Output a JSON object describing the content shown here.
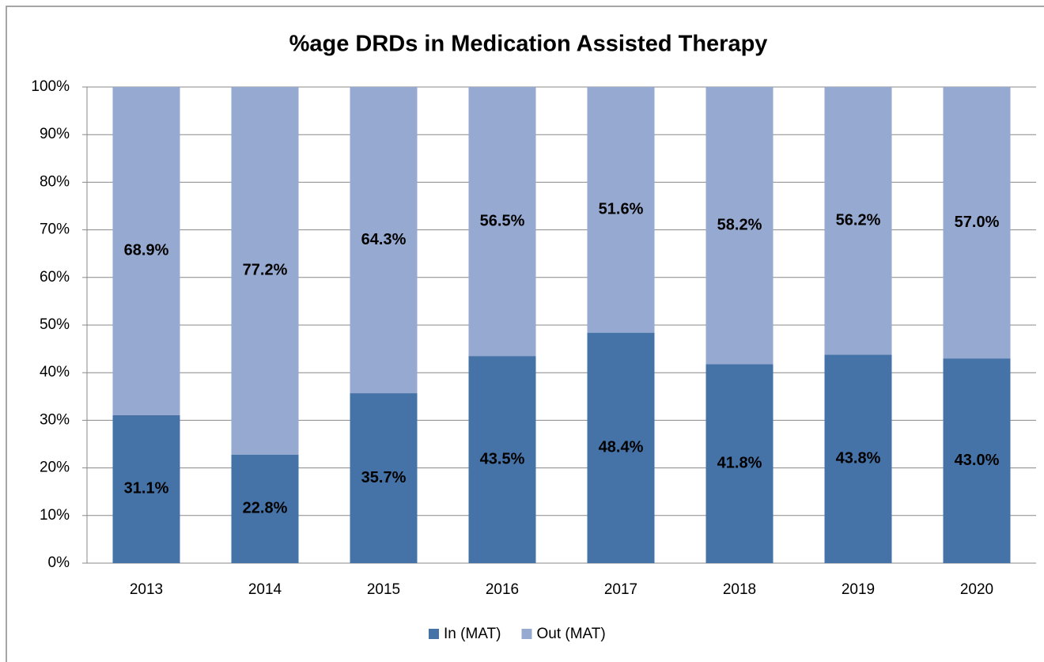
{
  "chart_data": {
    "type": "stacked_bar",
    "title": "%age DRDs in Medication Assisted Therapy",
    "categories": [
      "2013",
      "2014",
      "2015",
      "2016",
      "2017",
      "2018",
      "2019",
      "2020"
    ],
    "series": [
      {
        "name": "In (MAT)",
        "color": "#4572a7",
        "values": [
          31.1,
          22.8,
          35.7,
          43.5,
          48.4,
          41.8,
          43.8,
          43.0
        ],
        "value_labels": [
          "31.1%",
          "22.8%",
          "35.7%",
          "43.5%",
          "48.4%",
          "41.8%",
          "43.8%",
          "43.0%"
        ]
      },
      {
        "name": "Out (MAT)",
        "color": "#95a9d1",
        "values": [
          68.9,
          77.2,
          64.3,
          56.5,
          51.6,
          58.2,
          56.2,
          57.0
        ],
        "value_labels": [
          "68.9%",
          "77.2%",
          "64.3%",
          "56.5%",
          "51.6%",
          "58.2%",
          "56.2%",
          "57.0%"
        ]
      }
    ],
    "ylim": [
      0,
      100
    ],
    "yticks": [
      {
        "value": 0,
        "label": "0%"
      },
      {
        "value": 10,
        "label": "10%"
      },
      {
        "value": 20,
        "label": "20%"
      },
      {
        "value": 30,
        "label": "30%"
      },
      {
        "value": 40,
        "label": "40%"
      },
      {
        "value": 50,
        "label": "50%"
      },
      {
        "value": 60,
        "label": "60%"
      },
      {
        "value": 70,
        "label": "70%"
      },
      {
        "value": 80,
        "label": "80%"
      },
      {
        "value": 90,
        "label": "90%"
      },
      {
        "value": 100,
        "label": "100%"
      }
    ],
    "grid": true,
    "legend": "bottom"
  }
}
